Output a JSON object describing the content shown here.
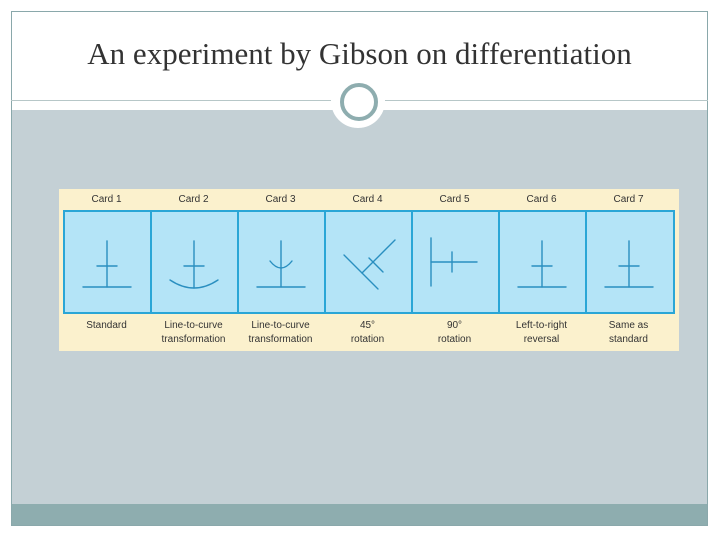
{
  "slide": {
    "title": "An experiment by Gibson on differentiation"
  },
  "figure": {
    "colors": {
      "card_fill": "#b4e4f7",
      "card_stroke": "#2aa6d6",
      "background": "#fbf1cd"
    },
    "cards": [
      {
        "name": "Card 1",
        "caption_lines": [
          "Standard"
        ]
      },
      {
        "name": "Card 2",
        "caption_lines": [
          "Line-to-curve",
          "transformation"
        ]
      },
      {
        "name": "Card 3",
        "caption_lines": [
          "Line-to-curve",
          "transformation"
        ]
      },
      {
        "name": "Card 4",
        "caption_lines": [
          "45°",
          "rotation"
        ]
      },
      {
        "name": "Card 5",
        "caption_lines": [
          "90°",
          "rotation"
        ]
      },
      {
        "name": "Card 6",
        "caption_lines": [
          "Left-to-right",
          "reversal"
        ]
      },
      {
        "name": "Card 7",
        "caption_lines": [
          "Same as",
          "standard"
        ]
      }
    ]
  }
}
